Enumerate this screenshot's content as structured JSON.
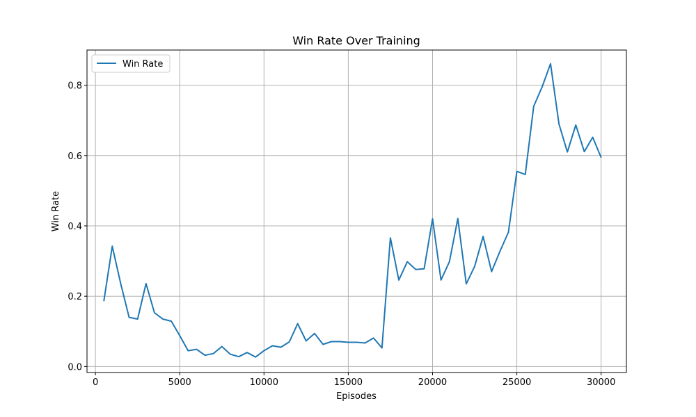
{
  "chart_data": {
    "type": "line",
    "title": "Win Rate Over Training",
    "xlabel": "Episodes",
    "ylabel": "Win Rate",
    "xlim": [
      -500,
      31500
    ],
    "ylim": [
      -0.017,
      0.9
    ],
    "grid": true,
    "legend_position": "top-left",
    "x_ticks": [
      0,
      5000,
      10000,
      15000,
      20000,
      25000,
      30000
    ],
    "x_tick_labels": [
      "0",
      "5000",
      "10000",
      "15000",
      "20000",
      "25000",
      "30000"
    ],
    "y_ticks": [
      0.0,
      0.2,
      0.4,
      0.6,
      0.8
    ],
    "y_tick_labels": [
      "0.0",
      "0.2",
      "0.4",
      "0.6",
      "0.8"
    ],
    "series": [
      {
        "name": "Win Rate",
        "color": "#1f77b4",
        "x": [
          500,
          1000,
          1500,
          2000,
          2500,
          3000,
          3500,
          4000,
          4500,
          5000,
          5500,
          6000,
          6500,
          7000,
          7500,
          8000,
          8500,
          9000,
          9500,
          10000,
          10500,
          11000,
          11500,
          12000,
          12500,
          13000,
          13500,
          14000,
          14500,
          15000,
          15500,
          16000,
          16500,
          17000,
          17500,
          18000,
          18500,
          19000,
          19500,
          20000,
          20500,
          21000,
          21500,
          22000,
          22500,
          23000,
          23500,
          24000,
          24500,
          25000,
          25500,
          26000,
          26500,
          27000,
          27500,
          28000,
          28500,
          29000,
          29500,
          30000
        ],
        "values": [
          0.186,
          0.342,
          0.236,
          0.14,
          0.135,
          0.236,
          0.153,
          0.135,
          0.129,
          0.088,
          0.045,
          0.049,
          0.032,
          0.037,
          0.057,
          0.035,
          0.028,
          0.04,
          0.027,
          0.045,
          0.059,
          0.055,
          0.07,
          0.122,
          0.073,
          0.094,
          0.063,
          0.071,
          0.071,
          0.069,
          0.069,
          0.067,
          0.081,
          0.053,
          0.366,
          0.246,
          0.298,
          0.276,
          0.278,
          0.42,
          0.246,
          0.298,
          0.421,
          0.235,
          0.285,
          0.37,
          0.27,
          0.328,
          0.382,
          0.555,
          0.546,
          0.74,
          0.795,
          0.861,
          0.69,
          0.61,
          0.687,
          0.611,
          0.652,
          0.594
        ]
      }
    ]
  }
}
